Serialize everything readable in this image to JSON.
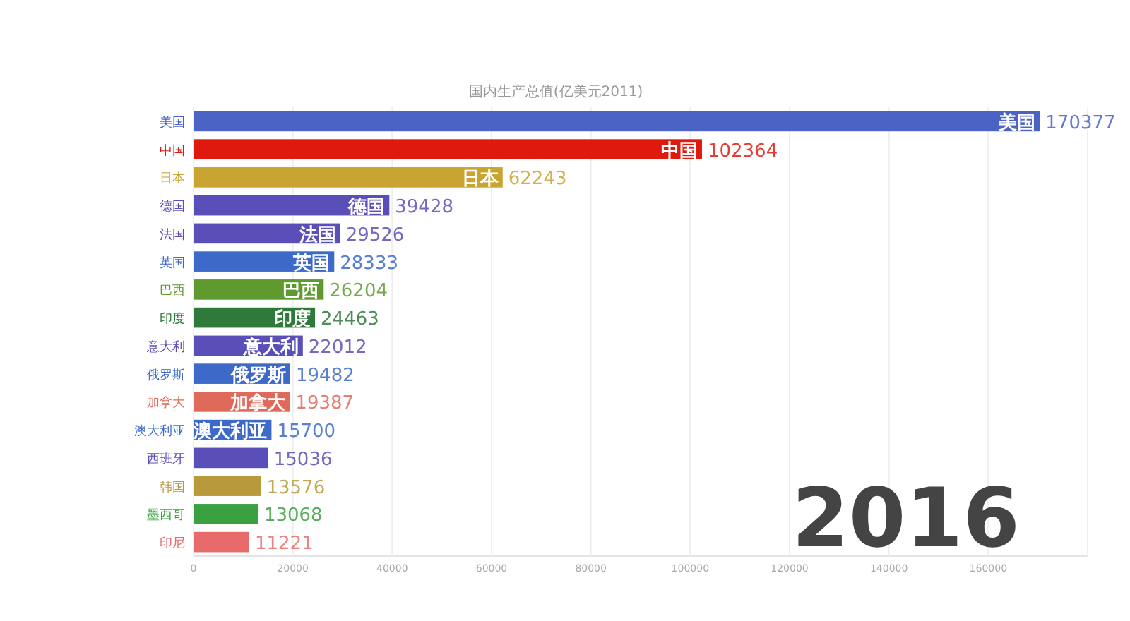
{
  "chart_data": {
    "type": "bar",
    "orientation": "horizontal",
    "title": "国内生产总值(亿美元2011)",
    "categories": [
      "美国",
      "中国",
      "日本",
      "德国",
      "法国",
      "英国",
      "巴西",
      "印度",
      "意大利",
      "俄罗斯",
      "加拿大",
      "澳大利亚",
      "西班牙",
      "韩国",
      "墨西哥",
      "印尼"
    ],
    "values": [
      170377,
      102364,
      62243,
      39428,
      29526,
      28333,
      26204,
      24463,
      22012,
      19482,
      19387,
      15700,
      15036,
      13576,
      13068,
      11221
    ],
    "colors": [
      "#4a63c4",
      "#e0190f",
      "#c9a430",
      "#5a4fb8",
      "#5a4fb8",
      "#3d6ac8",
      "#5e9a2e",
      "#2e7a3a",
      "#5a4fb8",
      "#3d6ac8",
      "#e06a5a",
      "#3d6ac8",
      "#5a4fb8",
      "#b89a3a",
      "#3aa040",
      "#e86a6a"
    ],
    "data_labels": true,
    "xlim": [
      0,
      180000
    ],
    "xticks": [
      0,
      20000,
      40000,
      60000,
      80000,
      100000,
      120000,
      140000,
      160000
    ],
    "grid": "x",
    "annotations": [
      {
        "text": "美国",
        "x": 170377,
        "y": "美国"
      },
      {
        "text": "中国",
        "x": 102364,
        "y": "中国"
      },
      {
        "text": "日本",
        "x": 62243,
        "y": "日本"
      },
      {
        "text": "德国",
        "x": 39428,
        "y": "德国"
      },
      {
        "text": "法国",
        "x": 29526,
        "y": "法国"
      },
      {
        "text": "英国",
        "x": 28333,
        "y": "英国"
      },
      {
        "text": "巴西",
        "x": 26204,
        "y": "巴西"
      },
      {
        "text": "印度",
        "x": 24463,
        "y": "印度"
      },
      {
        "text": "意大利",
        "x": 22012,
        "y": "意大利"
      },
      {
        "text": "俄罗斯",
        "x": 19482,
        "y": "俄罗斯"
      },
      {
        "text": "加拿大",
        "x": 19387,
        "y": "加拿大"
      },
      {
        "text": "澳大利亚",
        "x": 15700,
        "y": "澳大利亚"
      },
      "2016"
    ]
  }
}
